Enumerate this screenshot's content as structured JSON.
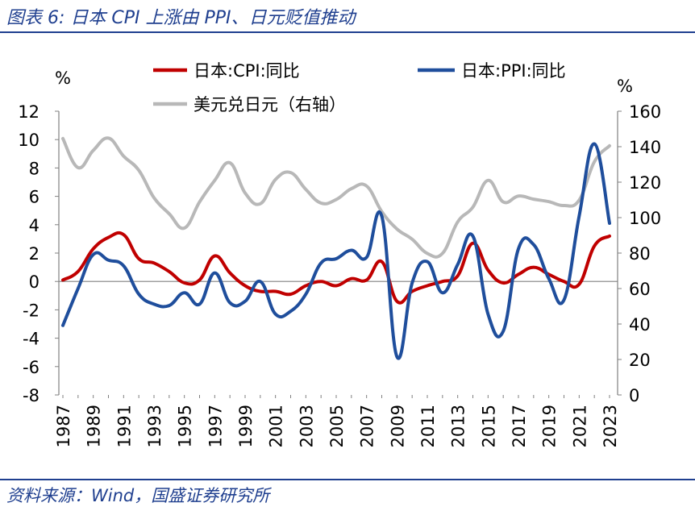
{
  "header": {
    "title": "图表 6:  日本 CPI 上涨由 PPI、日元贬值推动"
  },
  "footer": {
    "source": "资料来源：Wind，国盛证券研究所"
  },
  "chart_data": {
    "type": "line",
    "x": [
      1987,
      1988,
      1989,
      1990,
      1991,
      1992,
      1993,
      1994,
      1995,
      1996,
      1997,
      1998,
      1999,
      2000,
      2001,
      2002,
      2003,
      2004,
      2005,
      2006,
      2007,
      2008,
      2009,
      2010,
      2011,
      2012,
      2013,
      2014,
      2015,
      2016,
      2017,
      2018,
      2019,
      2020,
      2021,
      2022,
      2023
    ],
    "x_tick_labels": [
      "1987",
      "1989",
      "1991",
      "1993",
      "1995",
      "1997",
      "1999",
      "2001",
      "2003",
      "2005",
      "2007",
      "2009",
      "2011",
      "2013",
      "2015",
      "2017",
      "2019",
      "2021",
      "2023"
    ],
    "left_axis": {
      "unit": "%",
      "ylim": [
        -8,
        12
      ],
      "ticks": [
        "12",
        "10",
        "8",
        "6",
        "4",
        "2",
        "0",
        "-2",
        "-4",
        "-6",
        "-8"
      ]
    },
    "right_axis": {
      "unit": "%",
      "ylim": [
        0,
        160
      ],
      "ticks": [
        "160",
        "140",
        "120",
        "100",
        "80",
        "60",
        "40",
        "20",
        "0"
      ]
    },
    "grid": false,
    "legend_position": "top",
    "series": [
      {
        "name": "日本:CPI:同比",
        "axis": "left",
        "color": "#c00000",
        "values": [
          0.1,
          0.7,
          2.3,
          3.1,
          3.3,
          1.6,
          1.3,
          0.7,
          -0.1,
          0.1,
          1.8,
          0.6,
          -0.3,
          -0.7,
          -0.7,
          -0.9,
          -0.3,
          0.0,
          -0.3,
          0.2,
          0.1,
          1.4,
          -1.4,
          -0.7,
          -0.3,
          0.0,
          0.4,
          2.7,
          0.8,
          -0.1,
          0.5,
          1.0,
          0.5,
          0.0,
          -0.2,
          2.5,
          3.2
        ]
      },
      {
        "name": "日本:PPI:同比",
        "axis": "left",
        "color": "#1f4e9c",
        "values": [
          -3.1,
          -0.5,
          1.9,
          1.5,
          1.1,
          -0.9,
          -1.6,
          -1.7,
          -0.8,
          -1.6,
          0.6,
          -1.5,
          -1.4,
          0.0,
          -2.3,
          -2.1,
          -0.9,
          1.3,
          1.6,
          2.2,
          1.7,
          4.6,
          -5.3,
          -0.1,
          1.4,
          -0.8,
          1.2,
          3.2,
          -2.3,
          -3.5,
          2.3,
          2.6,
          0.2,
          -1.3,
          4.6,
          9.7,
          4.1
        ]
      },
      {
        "name": "美元兑日元（右轴）",
        "axis": "right",
        "color": "#b8b8b8",
        "values": [
          144.6,
          128.2,
          137.9,
          144.8,
          134.7,
          126.7,
          111.2,
          102.2,
          94.1,
          108.8,
          121.0,
          130.9,
          113.9,
          107.8,
          121.5,
          125.4,
          115.9,
          108.2,
          110.2,
          116.3,
          117.8,
          103.4,
          93.6,
          87.8,
          79.8,
          79.8,
          97.6,
          105.9,
          121.0,
          108.8,
          112.2,
          110.4,
          109.0,
          106.8,
          109.8,
          131.5,
          140.5
        ]
      }
    ]
  }
}
